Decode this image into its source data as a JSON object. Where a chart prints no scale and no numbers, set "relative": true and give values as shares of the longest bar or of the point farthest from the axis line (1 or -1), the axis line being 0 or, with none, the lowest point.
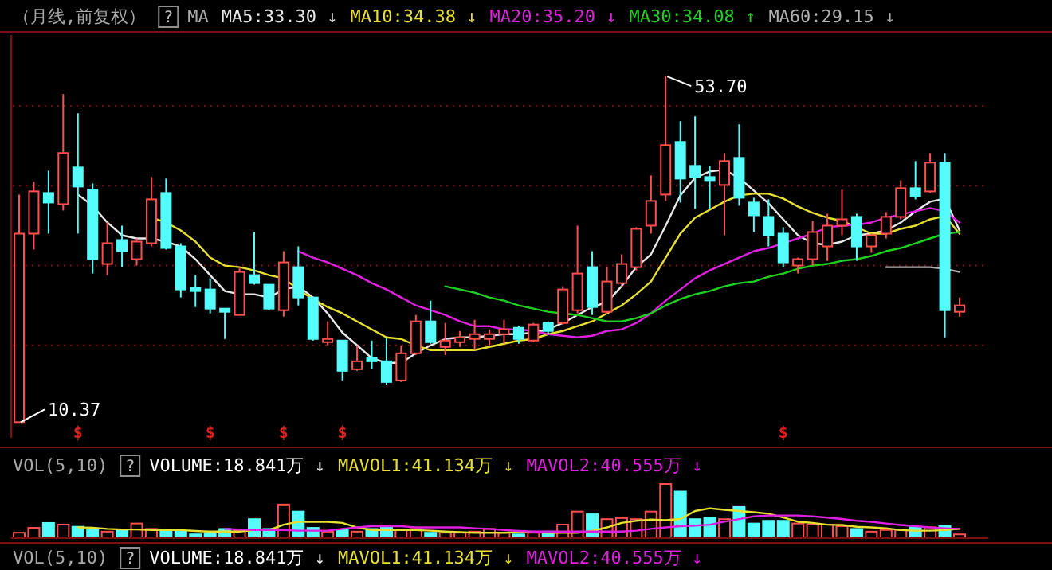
{
  "chart_data": [
    {
      "type": "candlestick",
      "title": "（月线,前复权）",
      "grid": "y",
      "annotations": [
        "53.70",
        "10.37",
        "?",
        "MA",
        "$",
        "$",
        "$",
        "$",
        "$"
      ],
      "categories": [
        null,
        null,
        null,
        null,
        null,
        null,
        null,
        null,
        null,
        null,
        null,
        null,
        null,
        null,
        null,
        null,
        null,
        null,
        null,
        null,
        null,
        null,
        null,
        null,
        null,
        null,
        null,
        null,
        null,
        null,
        null,
        null,
        null,
        null,
        null,
        null,
        null,
        null,
        null,
        null,
        null,
        null,
        null,
        null,
        null,
        null,
        null,
        null,
        null,
        null,
        null,
        null,
        null,
        null,
        null,
        null,
        null,
        null,
        null,
        null,
        null,
        null,
        null,
        null,
        null
      ],
      "ylim": [
        8.4,
        58.9
      ],
      "yticks": [
        {
          "value": 20,
          "label": null
        },
        {
          "value": 30,
          "label": null
        },
        {
          "value": 40,
          "label": null
        },
        {
          "value": 50,
          "label": null
        }
      ],
      "ohlc": [
        [
          10.37,
          38.9,
          10.37,
          34.0
        ],
        [
          34.0,
          40.5,
          32.0,
          39.3
        ],
        [
          39.1,
          41.9,
          34.0,
          37.9
        ],
        [
          37.7,
          51.5,
          36.9,
          44.1
        ],
        [
          42.3,
          49.1,
          34.0,
          39.9
        ],
        [
          39.5,
          40.3,
          29.0,
          30.8
        ],
        [
          30.2,
          35.4,
          28.8,
          32.8
        ],
        [
          33.2,
          35.0,
          29.8,
          31.8
        ],
        [
          30.8,
          33.4,
          30.0,
          33.0
        ],
        [
          32.8,
          41.1,
          32.4,
          38.3
        ],
        [
          39.1,
          40.9,
          32.0,
          32.2
        ],
        [
          32.4,
          32.8,
          26.0,
          27.0
        ],
        [
          27.2,
          28.8,
          24.8,
          26.8
        ],
        [
          27.0,
          28.4,
          24.0,
          24.6
        ],
        [
          24.6,
          24.6,
          20.8,
          24.2
        ],
        [
          23.8,
          29.8,
          23.8,
          29.2
        ],
        [
          28.8,
          34.2,
          27.6,
          27.8
        ],
        [
          27.6,
          27.6,
          24.4,
          24.6
        ],
        [
          24.4,
          31.8,
          23.6,
          30.4
        ],
        [
          29.8,
          32.4,
          25.0,
          26.0
        ],
        [
          26.0,
          26.0,
          20.6,
          20.8
        ],
        [
          20.4,
          23.0,
          20.0,
          20.8
        ],
        [
          20.6,
          20.6,
          15.6,
          16.8
        ],
        [
          17.0,
          20.0,
          16.8,
          18.0
        ],
        [
          18.4,
          20.6,
          17.0,
          18.0
        ],
        [
          18.0,
          21.0,
          15.0,
          15.4
        ],
        [
          15.6,
          20.0,
          15.4,
          19.0
        ],
        [
          19.0,
          23.8,
          18.8,
          23.0
        ],
        [
          23.0,
          25.6,
          20.2,
          20.4
        ],
        [
          19.8,
          22.8,
          18.8,
          20.6
        ],
        [
          20.4,
          21.8,
          19.8,
          21.0
        ],
        [
          20.8,
          23.2,
          19.4,
          21.4
        ],
        [
          20.8,
          22.0,
          20.0,
          21.4
        ],
        [
          21.4,
          23.2,
          20.2,
          22.0
        ],
        [
          22.2,
          22.4,
          20.2,
          20.8
        ],
        [
          20.6,
          22.8,
          20.4,
          22.6
        ],
        [
          22.8,
          23.0,
          21.4,
          21.8
        ],
        [
          22.8,
          27.4,
          22.6,
          27.0
        ],
        [
          24.4,
          35.0,
          24.0,
          29.0
        ],
        [
          29.8,
          31.8,
          23.8,
          24.8
        ],
        [
          24.2,
          29.8,
          24.0,
          28.0
        ],
        [
          27.8,
          31.4,
          27.4,
          30.2
        ],
        [
          29.8,
          34.8,
          29.4,
          34.6
        ],
        [
          35.0,
          41.3,
          34.0,
          38.1
        ],
        [
          38.9,
          53.7,
          38.1,
          45.1
        ],
        [
          45.5,
          48.1,
          37.9,
          40.9
        ],
        [
          42.5,
          48.7,
          37.1,
          41.1
        ],
        [
          41.1,
          42.5,
          37.1,
          40.7
        ],
        [
          40.1,
          44.1,
          33.8,
          43.1
        ],
        [
          43.5,
          47.7,
          37.5,
          38.5
        ],
        [
          37.9,
          38.5,
          34.2,
          36.3
        ],
        [
          36.1,
          38.3,
          32.4,
          33.8
        ],
        [
          34.0,
          34.8,
          29.8,
          30.4
        ],
        [
          30.0,
          31.0,
          29.0,
          30.8
        ],
        [
          30.8,
          35.6,
          30.0,
          34.2
        ],
        [
          32.4,
          36.5,
          30.6,
          35.0
        ],
        [
          35.0,
          39.5,
          33.8,
          35.8
        ],
        [
          36.1,
          36.5,
          30.6,
          32.4
        ],
        [
          32.4,
          34.0,
          31.6,
          33.8
        ],
        [
          34.0,
          36.7,
          33.4,
          36.1
        ],
        [
          36.1,
          40.7,
          35.8,
          39.7
        ],
        [
          39.7,
          43.1,
          38.3,
          38.7
        ],
        [
          39.3,
          44.1,
          39.1,
          42.9
        ],
        [
          42.9,
          44.1,
          21.0,
          24.4
        ],
        [
          24.2,
          26.0,
          23.6,
          25.0
        ]
      ],
      "colors": [
        "#ff4f4f",
        "#ff4f4f",
        "#54fcfc",
        "#ff4f4f",
        "#54fcfc",
        "#54fcfc",
        "#ff4f4f",
        "#54fcfc",
        "#ff4f4f",
        "#ff4f4f",
        "#54fcfc",
        "#54fcfc",
        "#54fcfc",
        "#54fcfc",
        "#54fcfc",
        "#ff4f4f",
        "#54fcfc",
        "#54fcfc",
        "#ff4f4f",
        "#54fcfc",
        "#54fcfc",
        "#ff4f4f",
        "#54fcfc",
        "#ff4f4f",
        "#54fcfc",
        "#54fcfc",
        "#ff4f4f",
        "#ff4f4f",
        "#54fcfc",
        "#ff4f4f",
        "#ff4f4f",
        "#ff4f4f",
        "#ff4f4f",
        "#ff4f4f",
        "#54fcfc",
        "#ff4f4f",
        "#54fcfc",
        "#ff4f4f",
        "#ff4f4f",
        "#54fcfc",
        "#ff4f4f",
        "#ff4f4f",
        "#ff4f4f",
        "#ff4f4f",
        "#ff4f4f",
        "#54fcfc",
        "#54fcfc",
        "#54fcfc",
        "#ff4f4f",
        "#54fcfc",
        "#54fcfc",
        "#54fcfc",
        "#54fcfc",
        "#ff4f4f",
        "#ff4f4f",
        "#ff4f4f",
        "#ff4f4f",
        "#54fcfc",
        "#ff4f4f",
        "#ff4f4f",
        "#ff4f4f",
        "#54fcfc",
        "#ff4f4f",
        "#54fcfc",
        "#ff4f4f"
      ],
      "series": [
        {
          "name": "MA5:33.30 ↓",
          "type": "line",
          "color": "#e8e8e8",
          "values": [
            null,
            null,
            null,
            null,
            38.9,
            37.5,
            35.4,
            33.8,
            33.4,
            33.4,
            33.0,
            32.4,
            30.8,
            28.8,
            26.8,
            26.4,
            26.4,
            26.0,
            27.0,
            27.4,
            26.0,
            24.0,
            21.6,
            20.0,
            18.4,
            17.8,
            17.8,
            19.0,
            20.0,
            20.8,
            21.0,
            21.0,
            21.2,
            21.4,
            21.4,
            21.6,
            22.0,
            22.8,
            23.8,
            24.8,
            25.4,
            27.4,
            29.8,
            31.4,
            35.0,
            38.8,
            41.0,
            41.8,
            42.0,
            41.0,
            39.4,
            37.8,
            35.8,
            33.8,
            32.8,
            32.6,
            33.0,
            33.8,
            34.0,
            34.4,
            35.4,
            36.8,
            38.0,
            38.4,
            34.4
          ]
        },
        {
          "name": "MA10:34.38 ↓",
          "type": "line",
          "color": "#e8e030",
          "values": [
            null,
            null,
            null,
            null,
            null,
            null,
            null,
            null,
            null,
            36.0,
            35.4,
            34.4,
            33.0,
            31.0,
            30.0,
            29.8,
            29.4,
            28.8,
            28.4,
            27.0,
            25.8,
            24.8,
            24.0,
            23.0,
            22.0,
            21.0,
            20.8,
            20.0,
            19.4,
            19.4,
            19.4,
            19.4,
            19.8,
            20.2,
            20.6,
            20.8,
            21.4,
            21.8,
            22.4,
            23.0,
            24.0,
            25.0,
            26.4,
            28.0,
            31.0,
            34.0,
            36.0,
            37.0,
            38.0,
            38.8,
            39.0,
            39.0,
            38.4,
            37.4,
            36.6,
            36.0,
            35.6,
            34.8,
            34.0,
            34.0,
            34.6,
            35.0,
            35.8,
            36.2,
            34.0
          ]
        },
        {
          "name": "MA20:35.20 ↓",
          "type": "line",
          "color": "#e020e0",
          "values": [
            null,
            null,
            null,
            null,
            null,
            null,
            null,
            null,
            null,
            null,
            null,
            null,
            null,
            null,
            null,
            null,
            null,
            null,
            null,
            31.8,
            31.0,
            30.4,
            29.6,
            28.8,
            27.8,
            27.0,
            26.0,
            25.0,
            24.4,
            23.8,
            23.0,
            22.4,
            22.4,
            22.0,
            22.0,
            21.8,
            21.4,
            21.2,
            21.0,
            21.2,
            21.8,
            22.0,
            22.8,
            24.0,
            25.6,
            27.0,
            28.4,
            29.4,
            30.2,
            31.0,
            31.8,
            32.2,
            32.8,
            33.4,
            34.0,
            34.8,
            35.0,
            35.1,
            35.4,
            36.0,
            36.4,
            36.8,
            37.2,
            36.8,
            35.4
          ]
        },
        {
          "name": "MA30:34.08 ↑",
          "type": "line",
          "color": "#20d020",
          "values": [
            null,
            null,
            null,
            null,
            null,
            null,
            null,
            null,
            null,
            null,
            null,
            null,
            null,
            null,
            null,
            null,
            null,
            null,
            null,
            null,
            null,
            null,
            null,
            null,
            null,
            null,
            null,
            null,
            null,
            27.4,
            27.0,
            26.6,
            26.0,
            25.6,
            25.0,
            24.6,
            24.2,
            24.0,
            23.8,
            23.4,
            23.0,
            23.0,
            23.4,
            24.0,
            25.0,
            25.8,
            26.4,
            26.8,
            27.4,
            27.8,
            28.0,
            28.6,
            29.0,
            29.6,
            30.0,
            30.2,
            30.6,
            30.8,
            31.2,
            31.8,
            32.2,
            32.8,
            33.4,
            34.0,
            34.2
          ]
        },
        {
          "name": "MA60:29.15 ↓",
          "type": "line",
          "color": "#b0b0b0",
          "values": [
            null,
            null,
            null,
            null,
            null,
            null,
            null,
            null,
            null,
            null,
            null,
            null,
            null,
            null,
            null,
            null,
            null,
            null,
            null,
            null,
            null,
            null,
            null,
            null,
            null,
            null,
            null,
            null,
            null,
            null,
            null,
            null,
            null,
            null,
            null,
            null,
            null,
            null,
            null,
            null,
            null,
            null,
            null,
            null,
            null,
            null,
            null,
            null,
            null,
            null,
            null,
            null,
            null,
            null,
            null,
            null,
            null,
            null,
            null,
            29.8,
            29.8,
            29.8,
            29.8,
            29.6,
            29.2
          ]
        }
      ]
    },
    {
      "type": "bar",
      "title": "VOL(5,10)",
      "relative": true,
      "annotations": [
        "?"
      ],
      "categories": [
        null,
        null,
        null,
        null,
        null,
        null,
        null,
        null,
        null,
        null,
        null,
        null,
        null,
        null,
        null,
        null,
        null,
        null,
        null,
        null,
        null,
        null,
        null,
        null,
        null,
        null,
        null,
        null,
        null,
        null,
        null,
        null,
        null,
        null,
        null,
        null,
        null,
        null,
        null,
        null,
        null,
        null,
        null,
        null,
        null,
        null,
        null,
        null,
        null,
        null,
        null,
        null,
        null,
        null,
        null,
        null,
        null,
        null,
        null,
        null,
        null,
        null,
        null,
        null,
        null
      ],
      "series": [
        {
          "name": "VOLUME:18.841万 ↓",
          "type": "bar",
          "colors": [
            "#ff4f4f",
            "#ff4f4f",
            "#54fcfc",
            "#ff4f4f",
            "#54fcfc",
            "#54fcfc",
            "#ff4f4f",
            "#54fcfc",
            "#ff4f4f",
            "#ff4f4f",
            "#54fcfc",
            "#54fcfc",
            "#54fcfc",
            "#54fcfc",
            "#54fcfc",
            "#ff4f4f",
            "#54fcfc",
            "#54fcfc",
            "#ff4f4f",
            "#54fcfc",
            "#54fcfc",
            "#ff4f4f",
            "#54fcfc",
            "#ff4f4f",
            "#54fcfc",
            "#54fcfc",
            "#ff4f4f",
            "#ff4f4f",
            "#54fcfc",
            "#ff4f4f",
            "#ff4f4f",
            "#ff4f4f",
            "#ff4f4f",
            "#ff4f4f",
            "#54fcfc",
            "#ff4f4f",
            "#54fcfc",
            "#ff4f4f",
            "#ff4f4f",
            "#54fcfc",
            "#ff4f4f",
            "#ff4f4f",
            "#ff4f4f",
            "#ff4f4f",
            "#ff4f4f",
            "#54fcfc",
            "#54fcfc",
            "#54fcfc",
            "#ff4f4f",
            "#54fcfc",
            "#54fcfc",
            "#54fcfc",
            "#54fcfc",
            "#ff4f4f",
            "#ff4f4f",
            "#ff4f4f",
            "#ff4f4f",
            "#54fcfc",
            "#ff4f4f",
            "#ff4f4f",
            "#ff4f4f",
            "#54fcfc",
            "#ff4f4f",
            "#54fcfc",
            "#ff4f4f"
          ],
          "values": [
            0.1,
            0.19,
            0.28,
            0.25,
            0.21,
            0.15,
            0.12,
            0.15,
            0.27,
            0.17,
            0.15,
            0.12,
            0.07,
            0.1,
            0.17,
            0.15,
            0.35,
            0.17,
            0.62,
            0.49,
            0.19,
            0.12,
            0.15,
            0.12,
            0.17,
            0.2,
            0.15,
            0.17,
            0.1,
            0.1,
            0.1,
            0.12,
            0.17,
            0.1,
            0.07,
            0.1,
            0.12,
            0.25,
            0.49,
            0.44,
            0.35,
            0.37,
            0.35,
            0.49,
            1,
            0.86,
            0.35,
            0.37,
            0.35,
            0.59,
            0.27,
            0.32,
            0.32,
            0.27,
            0.25,
            0.25,
            0.22,
            0.17,
            0.12,
            0.15,
            0.15,
            0.2,
            0.2,
            0.22,
            0.07
          ]
        }
      ]
    },
    {
      "type": "line",
      "relative": true,
      "categories": [
        null,
        null,
        null,
        null,
        null,
        null,
        null,
        null,
        null,
        null,
        null,
        null,
        null,
        null,
        null,
        null,
        null,
        null,
        null,
        null,
        null,
        null,
        null,
        null,
        null,
        null,
        null,
        null,
        null,
        null,
        null,
        null,
        null,
        null,
        null,
        null,
        null,
        null,
        null,
        null,
        null,
        null,
        null,
        null,
        null,
        null,
        null,
        null,
        null,
        null,
        null,
        null,
        null,
        null,
        null,
        null,
        null,
        null,
        null,
        null,
        null,
        null,
        null,
        null,
        null
      ],
      "series": [
        {
          "name": "MAVOL1:41.134万 ↓",
          "color": "#e8e030",
          "values": [
            null,
            null,
            null,
            null,
            0.36,
            0.35,
            0.31,
            0.29,
            0.29,
            0.27,
            0.27,
            0.27,
            0.24,
            0.22,
            0.22,
            0.22,
            0.27,
            0.27,
            0.45,
            0.55,
            0.55,
            0.55,
            0.51,
            0.36,
            0.27,
            0.27,
            0.27,
            0.27,
            0.25,
            0.22,
            0.2,
            0.18,
            0.18,
            0.18,
            0.2,
            0.2,
            0.18,
            0.18,
            0.18,
            0.24,
            0.36,
            0.51,
            0.58,
            0.62,
            0.6,
            0.64,
            0.91,
            1,
            0.95,
            0.91,
            0.87,
            0.82,
            0.69,
            0.55,
            0.51,
            0.45,
            0.44,
            0.38,
            0.36,
            0.33,
            0.27,
            0.25,
            0.25,
            0.27,
            0.31
          ]
        },
        {
          "name": "MAVOL2:40.555万 ↓",
          "color": "#e020e0",
          "values": [
            null,
            null,
            null,
            null,
            null,
            null,
            null,
            null,
            null,
            null,
            null,
            null,
            null,
            null,
            0.31,
            0.29,
            0.27,
            0.27,
            0.27,
            0.25,
            0.25,
            0.25,
            0.31,
            0.36,
            0.4,
            0.4,
            0.4,
            0.36,
            0.36,
            0.36,
            0.36,
            0.33,
            0.31,
            0.27,
            0.24,
            0.22,
            0.22,
            0.22,
            0.22,
            0.22,
            0.22,
            0.22,
            0.25,
            0.31,
            0.36,
            0.4,
            0.42,
            0.45,
            0.55,
            0.64,
            0.73,
            0.76,
            0.76,
            0.76,
            0.73,
            0.69,
            0.64,
            0.58,
            0.55,
            0.49,
            0.44,
            0.4,
            0.36,
            0.33,
            0.31
          ]
        }
      ]
    },
    {
      "type": "other",
      "title": "VOL(5,10)",
      "annotations": [
        "?",
        "VOLUME:18.841万 ↓",
        "MAVOL1:41.134万 ↓",
        "MAVOL2:40.555万 ↓"
      ]
    }
  ]
}
